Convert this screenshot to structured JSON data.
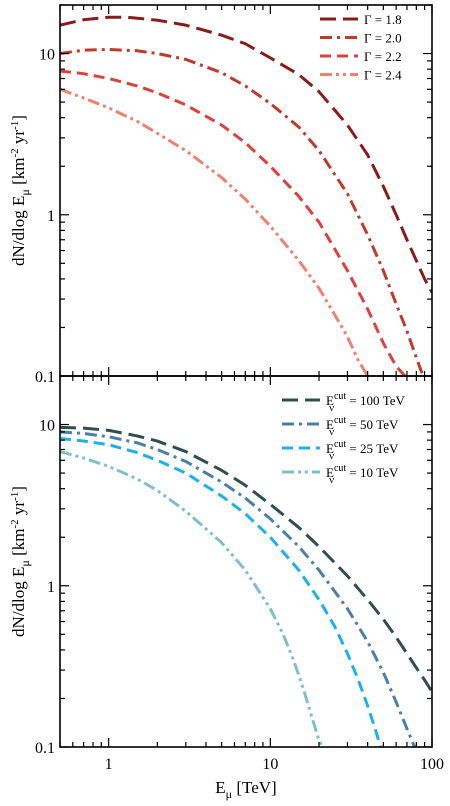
{
  "chart_data": [
    {
      "type": "line",
      "xscale": "log",
      "yscale": "log",
      "xlim": [
        0.5,
        100
      ],
      "ylim": [
        0.1,
        20
      ],
      "xlabel": "",
      "ylabel": "dN/dlog Eμ [km⁻² yr⁻¹]",
      "ytick_labels": [
        "0.1",
        "1",
        "10"
      ],
      "yticks": [
        0.1,
        1,
        10
      ],
      "legend_placement": "top-right",
      "series": [
        {
          "name": "Γ = 1.8",
          "color": "#8b1a1a",
          "dash": "long-dash",
          "x": [
            0.5,
            0.7,
            1,
            1.3,
            2,
            3,
            5,
            7,
            10,
            15,
            20,
            30,
            40,
            50,
            60,
            70,
            80,
            90,
            100
          ],
          "y": [
            15.0,
            16.2,
            16.8,
            16.8,
            16.1,
            15.0,
            13.0,
            11.5,
            9.4,
            7.4,
            5.8,
            3.6,
            2.35,
            1.5,
            1.0,
            0.7,
            0.52,
            0.4,
            0.33
          ]
        },
        {
          "name": "Γ = 2.0",
          "color": "#c0392b",
          "dash": "dash-dot",
          "x": [
            0.5,
            0.7,
            1,
            1.5,
            2,
            3,
            5,
            7,
            10,
            15,
            20,
            30,
            40,
            50,
            60,
            70,
            80,
            88
          ],
          "y": [
            10.0,
            10.5,
            10.6,
            10.4,
            10.0,
            9.2,
            7.6,
            6.3,
            4.9,
            3.5,
            2.5,
            1.35,
            0.75,
            0.45,
            0.28,
            0.19,
            0.13,
            0.1
          ]
        },
        {
          "name": "Γ = 2.2",
          "color": "#e0403c",
          "dash": "dash",
          "x": [
            0.5,
            0.7,
            1,
            1.5,
            2,
            3,
            5,
            7,
            10,
            15,
            20,
            30,
            40,
            50,
            60,
            68
          ],
          "y": [
            7.8,
            7.5,
            7.0,
            6.3,
            5.7,
            4.8,
            3.6,
            2.8,
            2.0,
            1.3,
            0.9,
            0.45,
            0.26,
            0.16,
            0.115,
            0.1
          ]
        },
        {
          "name": "Γ = 2.4",
          "color": "#f08070",
          "dash": "dash-dot-dot",
          "x": [
            0.5,
            0.7,
            1,
            1.5,
            2,
            3,
            5,
            7,
            10,
            15,
            20,
            25,
            30,
            35,
            40
          ],
          "y": [
            6.0,
            5.3,
            4.6,
            3.8,
            3.2,
            2.5,
            1.7,
            1.25,
            0.85,
            0.52,
            0.35,
            0.24,
            0.175,
            0.125,
            0.1
          ]
        }
      ]
    },
    {
      "type": "line",
      "xscale": "log",
      "yscale": "log",
      "xlim": [
        0.5,
        100
      ],
      "ylim": [
        0.1,
        20
      ],
      "xlabel": "Eμ [TeV]",
      "ylabel": "dN/dlog Eμ [km⁻² yr⁻¹]",
      "xticks": [
        1,
        10,
        100
      ],
      "xtick_labels": [
        "1",
        "10",
        "100"
      ],
      "yticks": [
        0.1,
        1,
        10
      ],
      "ytick_labels": [
        "0.1",
        "1",
        "10"
      ],
      "legend_placement": "top-right",
      "series": [
        {
          "name": "Eνcut = 100 TeV",
          "label_sym": "E",
          "label_sub": "ν",
          "label_sup": "cut",
          "label_rest": " = 100 TeV",
          "color": "#2f4f4f",
          "dash": "long-dash",
          "x": [
            0.5,
            0.7,
            1,
            1.5,
            2,
            3,
            5,
            7,
            10,
            15,
            20,
            30,
            40,
            50,
            60,
            70,
            80,
            90,
            100
          ],
          "y": [
            9.6,
            9.5,
            9.2,
            8.5,
            7.9,
            6.8,
            5.2,
            4.2,
            3.2,
            2.3,
            1.75,
            1.15,
            0.82,
            0.62,
            0.48,
            0.38,
            0.31,
            0.26,
            0.22
          ]
        },
        {
          "name": "Eνcut = 50 TeV",
          "label_sym": "E",
          "label_sub": "ν",
          "label_sup": "cut",
          "label_rest": " =  50 TeV",
          "color": "#4a7fa8",
          "dash": "dash-dot",
          "x": [
            0.5,
            0.7,
            1,
            1.5,
            2,
            3,
            5,
            7,
            10,
            15,
            20,
            30,
            40,
            50,
            60,
            70,
            78
          ],
          "y": [
            9.0,
            8.8,
            8.4,
            7.7,
            7.0,
            5.9,
            4.4,
            3.5,
            2.6,
            1.75,
            1.25,
            0.72,
            0.45,
            0.29,
            0.19,
            0.13,
            0.1
          ]
        },
        {
          "name": "Eνcut = 25 TeV",
          "label_sym": "E",
          "label_sub": "ν",
          "label_sup": "cut",
          "label_rest": " =  25 TeV",
          "color": "#1ab2e8",
          "dash": "dash",
          "x": [
            0.5,
            0.7,
            1,
            1.5,
            2,
            3,
            5,
            7,
            10,
            15,
            20,
            25,
            30,
            35,
            40,
            45,
            48
          ],
          "y": [
            8.2,
            7.9,
            7.5,
            6.7,
            6.0,
            5.0,
            3.6,
            2.8,
            2.0,
            1.25,
            0.82,
            0.56,
            0.38,
            0.26,
            0.18,
            0.125,
            0.1
          ]
        },
        {
          "name": "Eνcut = 10 TeV",
          "label_sym": "E",
          "label_sub": "ν",
          "label_sup": "cut",
          "label_rest": " =  10 TeV",
          "color": "#7fbfcc",
          "dash": "dash-dot-dot",
          "x": [
            0.5,
            0.7,
            1,
            1.5,
            2,
            3,
            5,
            7,
            10,
            12,
            14,
            16,
            18,
            20,
            21
          ],
          "y": [
            6.8,
            6.2,
            5.5,
            4.6,
            3.9,
            2.9,
            1.85,
            1.25,
            0.72,
            0.5,
            0.34,
            0.23,
            0.155,
            0.11,
            0.1
          ]
        }
      ]
    }
  ]
}
